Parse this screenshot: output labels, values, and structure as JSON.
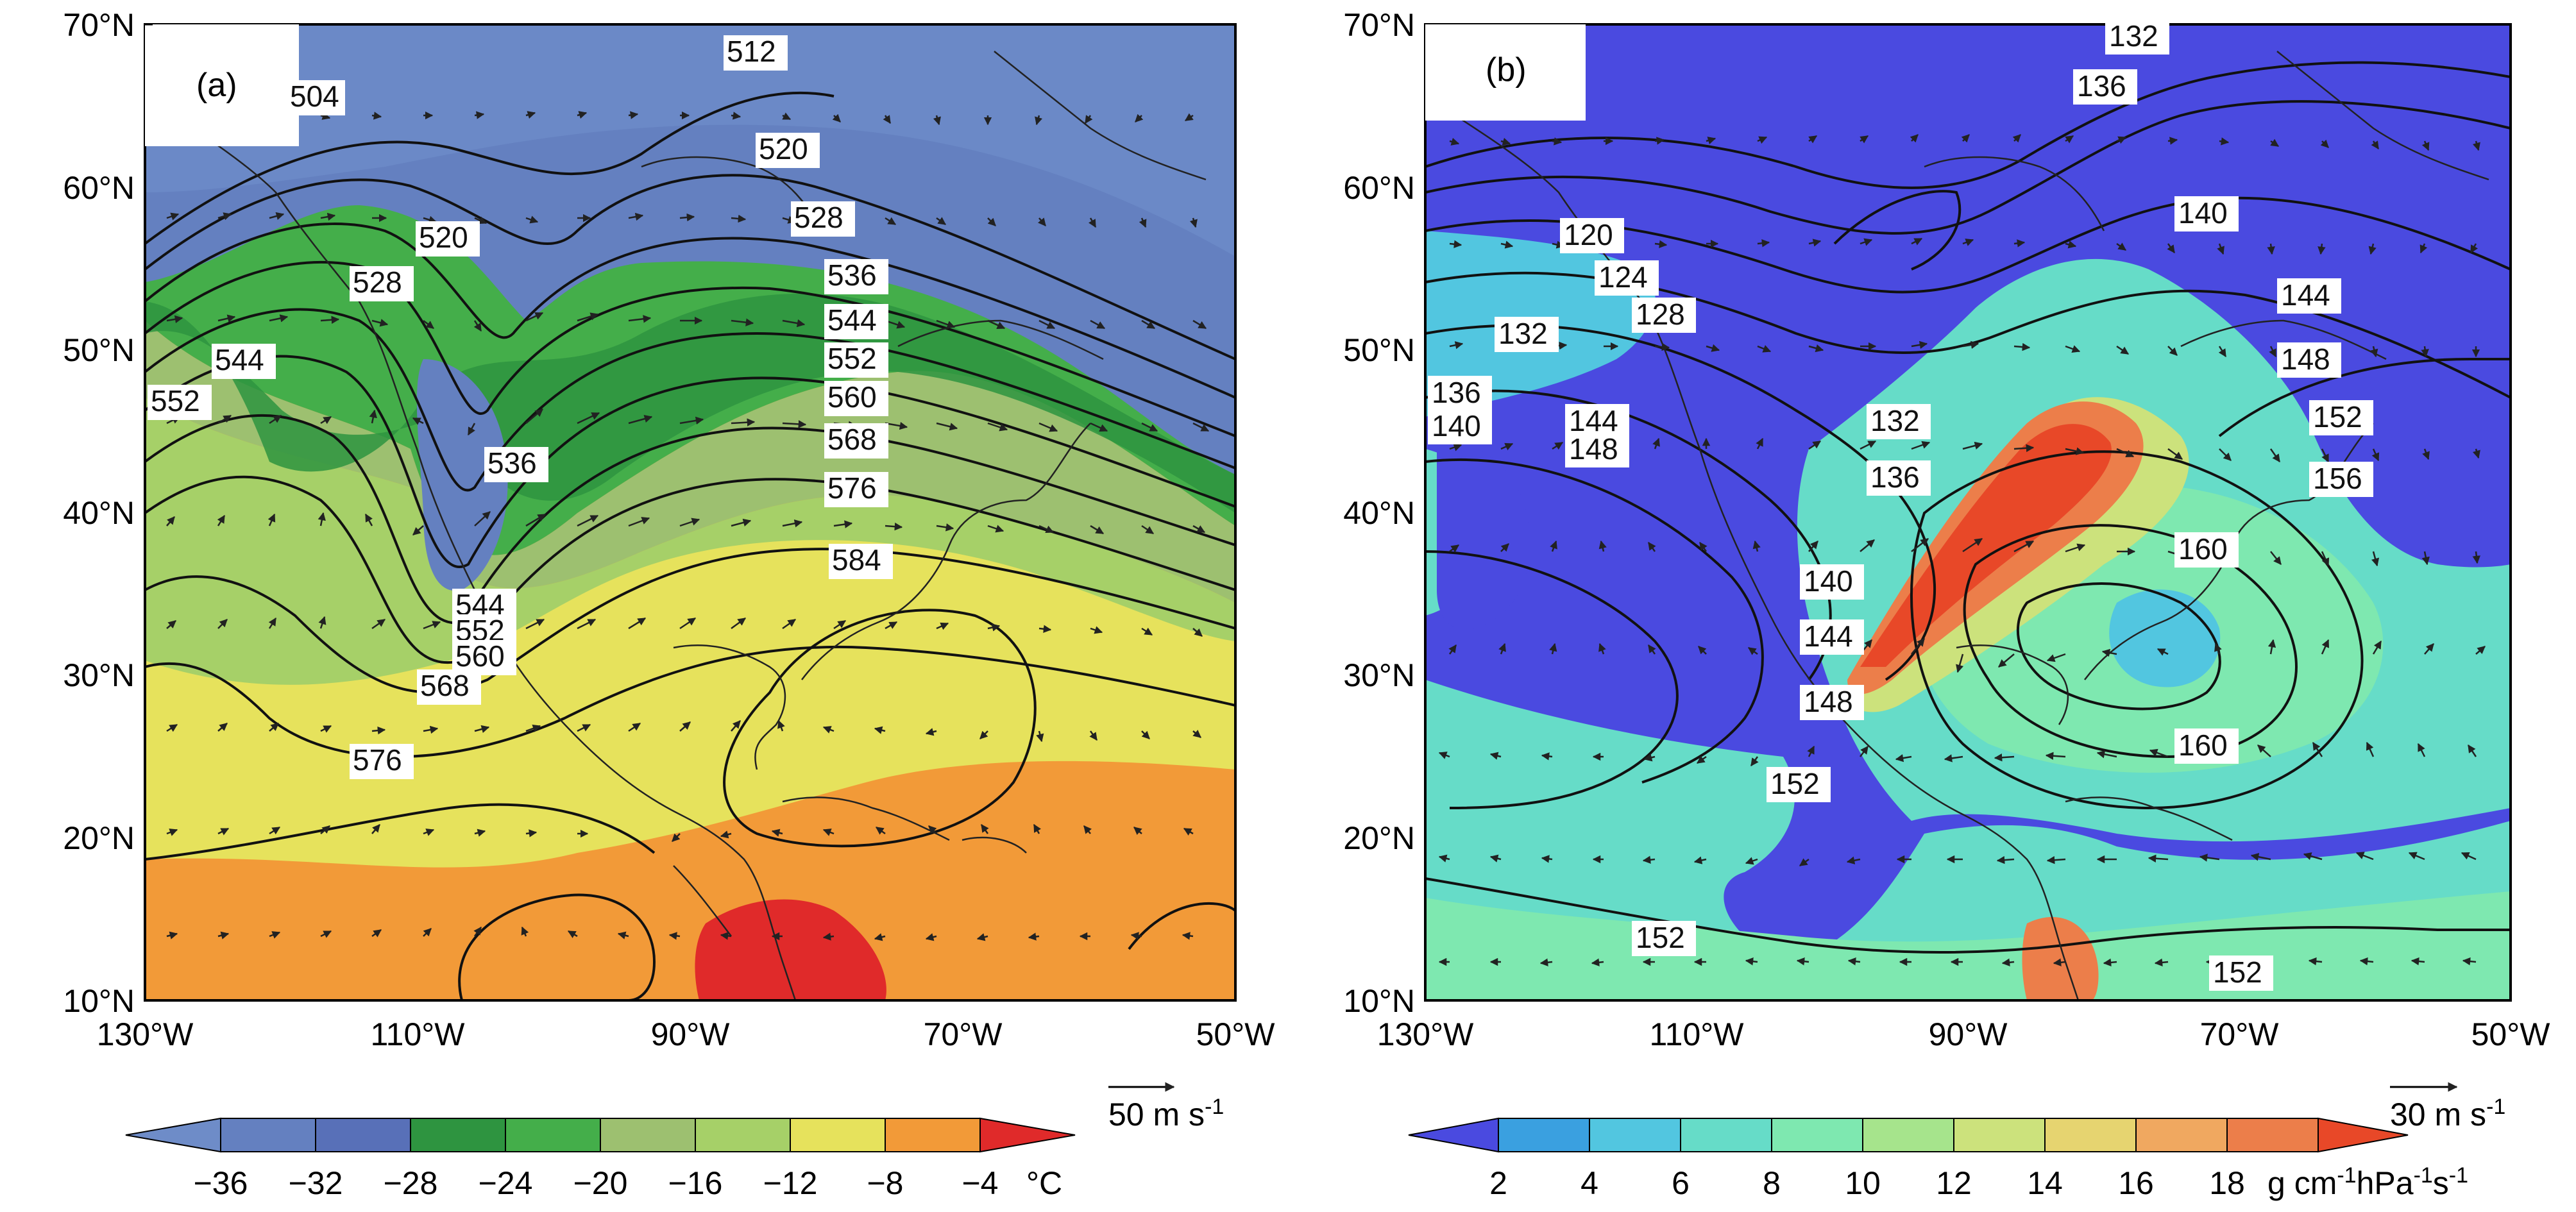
{
  "panels": [
    {
      "id": "a",
      "label": "(a)",
      "lat_labels": [
        "70°N",
        "60°N",
        "50°N",
        "40°N",
        "30°N",
        "20°N",
        "10°N"
      ],
      "lon_labels": [
        "130°W",
        "110°W",
        "90°W",
        "70°W",
        "50°W"
      ],
      "wind_ref": "50 m s",
      "wind_ref_exp": "-1",
      "colorbar_ticks": [
        "−36",
        "−32",
        "−28",
        "−24",
        "−20",
        "−16",
        "−12",
        "−8",
        "−4"
      ],
      "colorbar_unit": "°C",
      "colorbar_colors": [
        "#6e8cc8",
        "#6480c0",
        "#5870b8",
        "#2e9440",
        "#44ae4a",
        "#9dc070",
        "#a6d068",
        "#e6e25c",
        "#f2c040",
        "#f29a38",
        "#e02a2a"
      ],
      "contour_labels": [
        "504",
        "512",
        "520",
        "528",
        "536",
        "544",
        "552",
        "560",
        "568",
        "576",
        "584",
        "520",
        "528",
        "536",
        "544",
        "552",
        "560",
        "568",
        "576",
        "536",
        "544",
        "552",
        "560",
        "568",
        "576",
        "544",
        "552"
      ]
    },
    {
      "id": "b",
      "label": "(b)",
      "lat_labels": [
        "70°N",
        "60°N",
        "50°N",
        "40°N",
        "30°N",
        "20°N",
        "10°N"
      ],
      "lon_labels": [
        "130°W",
        "110°W",
        "90°W",
        "70°W",
        "50°W"
      ],
      "wind_ref": "30 m s",
      "wind_ref_exp": "-1",
      "colorbar_ticks": [
        "2",
        "4",
        "6",
        "8",
        "10",
        "12",
        "14",
        "16",
        "18"
      ],
      "colorbar_unit": "g cm",
      "colorbar_unit_parts": [
        "g cm",
        "-1",
        "hPa",
        "-1",
        "s",
        "-1"
      ],
      "colorbar_colors": [
        "#4a4ae0",
        "#3aa0e0",
        "#52c6e0",
        "#66dcc8",
        "#7ee8b0",
        "#a6e48c",
        "#cce27c",
        "#e6d470",
        "#f0a860",
        "#ec7e4a",
        "#e84828"
      ],
      "contour_labels": [
        "132",
        "136",
        "140",
        "144",
        "148",
        "152",
        "156",
        "160",
        "120",
        "124",
        "128",
        "132",
        "136",
        "140",
        "144",
        "148",
        "132",
        "136",
        "140",
        "144",
        "148",
        "152",
        "160",
        "152",
        "152",
        "124"
      ]
    }
  ]
}
